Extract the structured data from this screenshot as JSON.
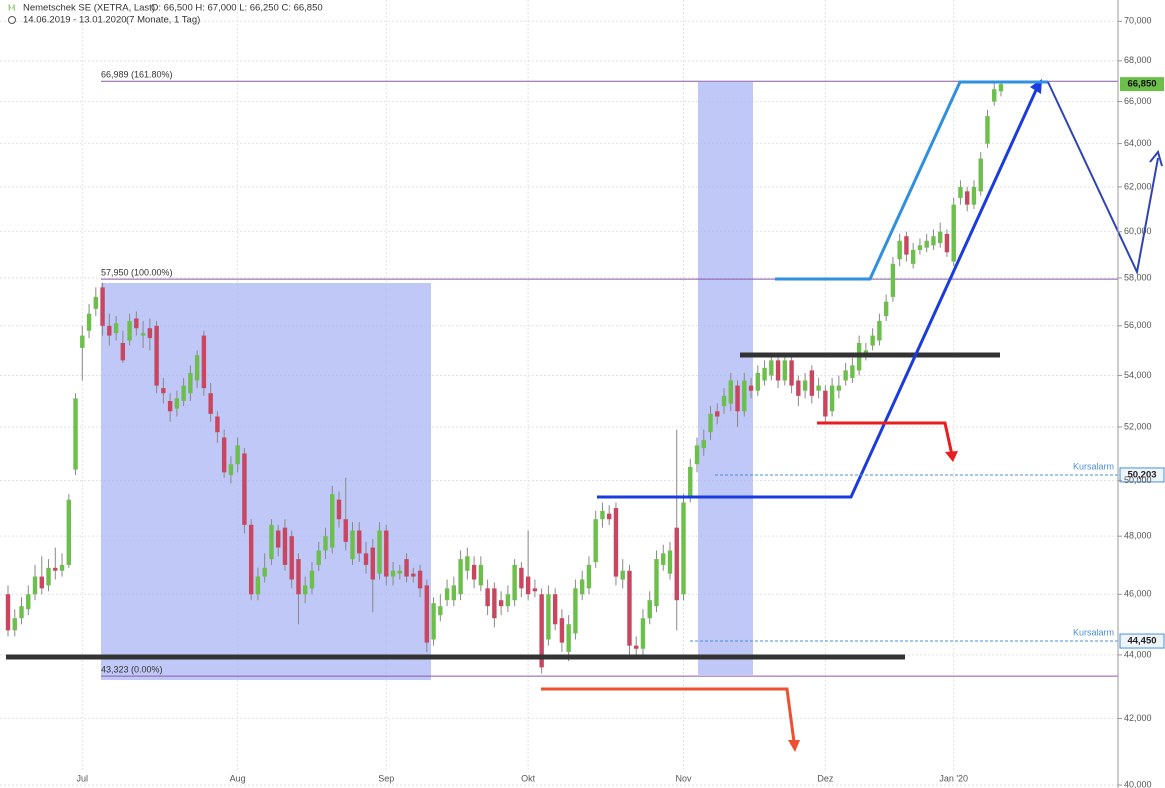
{
  "chart_data": {
    "type": "candlestick",
    "title": "Nemetschek SE (XETRA, Last)",
    "ohlc_text": "O: 66,500  H: 67,000  L: 66,250  C: 66,850",
    "subtitle": "14.06.2019 - 13.01.2020",
    "period": "(7 Monate, 1 Tag)",
    "categories": [
      null,
      null,
      null,
      null,
      null,
      null,
      null,
      null,
      null,
      null,
      null,
      "Jul",
      null,
      null,
      null,
      null,
      null,
      null,
      null,
      null,
      null,
      null,
      null,
      null,
      null,
      null,
      null,
      null,
      null,
      null,
      null,
      null,
      null,
      null,
      "Aug",
      null,
      null,
      null,
      null,
      null,
      null,
      null,
      null,
      null,
      null,
      null,
      null,
      null,
      null,
      null,
      null,
      null,
      null,
      null,
      null,
      null,
      "Sep",
      null,
      null,
      null,
      null,
      null,
      null,
      null,
      null,
      null,
      null,
      null,
      null,
      null,
      null,
      null,
      null,
      null,
      null,
      null,
      null,
      "Okt",
      null,
      null,
      null,
      null,
      null,
      null,
      null,
      null,
      null,
      null,
      null,
      null,
      null,
      null,
      null,
      null,
      null,
      null,
      null,
      null,
      null,
      null,
      "Nov",
      null,
      null,
      null,
      null,
      null,
      null,
      null,
      null,
      null,
      null,
      null,
      null,
      null,
      null,
      null,
      null,
      null,
      null,
      null,
      null,
      "Dez",
      null,
      null,
      null,
      null,
      null,
      null,
      null,
      null,
      null,
      null,
      null,
      null,
      null,
      null,
      null,
      null,
      null,
      null,
      "Jan '20",
      null,
      null,
      null,
      null,
      null,
      null,
      null
    ],
    "open": [
      46.0,
      44.8,
      45.2,
      45.5,
      46.0,
      46.6,
      46.3,
      46.9,
      46.8,
      47.0,
      50.4,
      55.1,
      55.8,
      56.7,
      57.6,
      56.0,
      55.7,
      55.3,
      55.4,
      56.3,
      55.6,
      55.9,
      56.0,
      53.5,
      53.0,
      52.7,
      53.0,
      53.3,
      53.8,
      55.6,
      53.3,
      52.4,
      51.6,
      50.2,
      50.6,
      51.0,
      48.4,
      46.0,
      46.6,
      47.2,
      48.2,
      48.3,
      48.0,
      47.2,
      46.0,
      46.2,
      47.0,
      47.5,
      47.6,
      49.3,
      48.6,
      47.2,
      48.2,
      47.4,
      47.6,
      46.7,
      48.2,
      46.6,
      46.7,
      47.2,
      46.7,
      46.8,
      46.3,
      44.5,
      45.3,
      45.8,
      45.8,
      46.0,
      46.8,
      47.0,
      46.3,
      46.2,
      46.2,
      45.8,
      45.6,
      45.8,
      46.9,
      46.6,
      46.2,
      46.0,
      44.5,
      46.0,
      45.2,
      44.1,
      44.7,
      46.0,
      46.2,
      47.1,
      48.6,
      48.8,
      49.0,
      46.5,
      46.8,
      44.3,
      44.2,
      45.2,
      45.6,
      47.0,
      46.7,
      48.3,
      46.0,
      49.4,
      50.6,
      51.2,
      51.8,
      52.6,
      52.8,
      52.9,
      53.6,
      52.6,
      53.6,
      53.4,
      53.8,
      54.0,
      54.6,
      53.8,
      54.6,
      53.8,
      53.4,
      54.2,
      53.4,
      53.4,
      52.6,
      53.4,
      53.8,
      53.9,
      54.2,
      54.8,
      55.2,
      55.4,
      56.4,
      57.2,
      58.8,
      59.8,
      58.6,
      59.2,
      59.3,
      59.4,
      59.5,
      59.9,
      58.7,
      61.5,
      61.8,
      61.2,
      61.8,
      64.0,
      66.0,
      66.5
    ],
    "high": [
      46.3,
      45.5,
      45.9,
      46.3,
      47.0,
      47.3,
      47.2,
      47.6,
      47.4,
      49.5,
      53.3,
      56.0,
      56.9,
      57.6,
      57.8,
      56.5,
      56.4,
      55.8,
      56.5,
      56.6,
      56.2,
      56.3,
      56.2,
      53.9,
      53.3,
      53.4,
      53.9,
      54.4,
      55.0,
      55.8,
      53.7,
      52.6,
      51.9,
      50.9,
      51.6,
      51.2,
      48.6,
      46.9,
      47.4,
      48.6,
      48.4,
      48.6,
      48.2,
      47.4,
      46.6,
      47.1,
      47.8,
      48.3,
      49.8,
      49.6,
      50.1,
      48.5,
      48.5,
      47.8,
      47.9,
      48.5,
      48.4,
      47.1,
      47.0,
      47.4,
      46.9,
      47.0,
      46.5,
      45.9,
      46.0,
      46.5,
      46.6,
      47.5,
      47.6,
      47.3,
      47.3,
      46.5,
      46.4,
      46.1,
      46.3,
      47.2,
      47.1,
      48.2,
      46.5,
      46.2,
      46.3,
      46.2,
      45.5,
      45.3,
      46.5,
      46.8,
      47.3,
      48.9,
      49.2,
      49.1,
      49.2,
      47.2,
      47.0,
      44.6,
      45.5,
      46.1,
      47.5,
      47.7,
      47.8,
      51.9,
      49.5,
      50.8,
      51.6,
      51.9,
      52.8,
      52.9,
      53.5,
      54.1,
      53.8,
      54.1,
      53.9,
      54.4,
      54.6,
      54.9,
      54.8,
      54.9,
      54.8,
      54.0,
      54.1,
      54.4,
      53.9,
      53.6,
      53.9,
      54.0,
      54.5,
      54.7,
      55.6,
      55.3,
      55.9,
      56.5,
      57.3,
      58.9,
      59.9,
      60.0,
      59.5,
      59.7,
      59.9,
      60.1,
      60.4,
      60.1,
      61.5,
      62.3,
      62.0,
      62.3,
      63.6,
      65.6,
      66.9,
      67.0
    ],
    "low": [
      44.6,
      44.6,
      45.0,
      45.3,
      45.8,
      46.0,
      46.1,
      46.5,
      46.6,
      46.9,
      50.2,
      53.8,
      55.5,
      56.4,
      55.6,
      55.2,
      55.4,
      54.5,
      55.2,
      55.6,
      55.1,
      55.0,
      53.3,
      52.9,
      52.2,
      52.4,
      52.8,
      53.0,
      53.5,
      53.2,
      52.2,
      51.4,
      50.1,
      49.9,
      50.3,
      48.1,
      45.8,
      45.8,
      46.4,
      47.0,
      47.3,
      46.8,
      46.2,
      45.0,
      45.7,
      46.0,
      46.8,
      47.2,
      47.4,
      48.3,
      47.5,
      47.0,
      47.1,
      46.7,
      45.4,
      46.5,
      46.3,
      46.3,
      46.5,
      46.4,
      46.4,
      45.9,
      44.1,
      44.3,
      45.1,
      45.6,
      45.6,
      45.8,
      46.5,
      46.2,
      46.1,
      45.3,
      44.9,
      45.3,
      45.4,
      45.6,
      45.9,
      45.8,
      45.9,
      43.4,
      44.3,
      44.8,
      44.1,
      43.8,
      44.5,
      45.8,
      46.0,
      46.9,
      48.3,
      48.4,
      46.3,
      46.2,
      44.0,
      43.9,
      44.0,
      45.0,
      45.4,
      46.8,
      46.5,
      44.8,
      45.8,
      49.2,
      50.3,
      50.9,
      51.5,
      52.1,
      52.5,
      52.6,
      52.0,
      52.4,
      53.1,
      53.2,
      53.6,
      53.8,
      53.5,
      53.6,
      53.3,
      52.8,
      53.1,
      52.9,
      53.1,
      52.2,
      52.4,
      53.1,
      53.6,
      53.7,
      54.0,
      54.6,
      55.0,
      55.2,
      56.2,
      57.0,
      58.5,
      58.7,
      58.4,
      59.0,
      59.1,
      59.2,
      59.3,
      58.9,
      58.5,
      61.2,
      60.9,
      61.0,
      61.6,
      63.8,
      65.8,
      66.25
    ],
    "close": [
      44.8,
      45.2,
      45.6,
      46.0,
      46.6,
      46.2,
      46.9,
      46.8,
      47.0,
      49.3,
      53.1,
      55.6,
      56.5,
      57.2,
      56.0,
      55.6,
      56.1,
      54.6,
      56.2,
      55.9,
      55.7,
      55.5,
      53.6,
      53.3,
      52.6,
      53.1,
      53.6,
      54.1,
      54.8,
      53.5,
      52.5,
      51.8,
      50.3,
      50.6,
      51.3,
      48.4,
      46.0,
      46.6,
      46.9,
      48.4,
      47.6,
      47.0,
      46.5,
      46.0,
      46.3,
      46.8,
      47.5,
      48.0,
      49.5,
      48.6,
      47.8,
      48.2,
      47.4,
      47.0,
      46.5,
      48.2,
      46.6,
      46.8,
      46.8,
      46.6,
      46.6,
      46.2,
      44.4,
      45.7,
      45.6,
      46.2,
      46.3,
      47.2,
      47.3,
      46.5,
      47.0,
      45.6,
      45.2,
      45.6,
      46.0,
      47.0,
      46.2,
      46.0,
      46.1,
      43.6,
      46.0,
      45.0,
      44.4,
      45.0,
      46.2,
      46.5,
      47.0,
      48.6,
      48.9,
      48.6,
      46.6,
      46.8,
      44.3,
      44.2,
      45.2,
      45.8,
      47.2,
      47.4,
      47.5,
      45.8,
      49.2,
      50.5,
      51.3,
      51.5,
      52.5,
      52.4,
      53.2,
      53.8,
      52.6,
      53.8,
      53.4,
      54.1,
      54.3,
      54.6,
      53.8,
      54.6,
      53.6,
      53.2,
      53.8,
      53.2,
      53.6,
      52.4,
      53.6,
      53.6,
      54.2,
      54.4,
      55.3,
      55.0,
      55.6,
      56.2,
      57.0,
      58.6,
      59.6,
      59.0,
      59.2,
      59.4,
      59.6,
      59.8,
      60.0,
      59.1,
      61.2,
      62.0,
      61.2,
      62.0,
      63.3,
      65.3,
      66.6,
      66.85
    ],
    "up_color": "#6cbf4a",
    "down_color": "#c8465f",
    "log_scale": true,
    "grid": true,
    "ylim": [
      40,
      71.1
    ],
    "yticks": [
      {
        "value": 40,
        "label": "40,000"
      },
      {
        "value": 42,
        "label": "42,000"
      },
      {
        "value": 44,
        "label": "44,000"
      },
      {
        "value": 46,
        "label": "46,000"
      },
      {
        "value": 48,
        "label": "48,000"
      },
      {
        "value": 50,
        "label": "50,000"
      },
      {
        "value": 52,
        "label": "52,000"
      },
      {
        "value": 54,
        "label": "54,000"
      },
      {
        "value": 56,
        "label": "56,000"
      },
      {
        "value": 58,
        "label": "58,000"
      },
      {
        "value": 60,
        "label": "60,000"
      },
      {
        "value": 62,
        "label": "62,000"
      },
      {
        "value": 64,
        "label": "64,000"
      },
      {
        "value": 66,
        "label": "66,000"
      },
      {
        "value": 68,
        "label": "68,000"
      },
      {
        "value": 70,
        "label": "70,000"
      }
    ],
    "fib_levels": [
      {
        "value": 66.989,
        "label": "66,989 (161.80%)"
      },
      {
        "value": 57.95,
        "label": "57,950 (100.00%)"
      },
      {
        "value": 43.323,
        "label": "43,323 (0.00%)"
      }
    ],
    "alerts": [
      {
        "name": "Kursalarm",
        "value": 50.203,
        "label": "50,203"
      },
      {
        "name": "Kursalarm",
        "value": 44.45,
        "label": "44,450"
      }
    ],
    "price_tag": {
      "value": 66.85,
      "label": "66,850"
    }
  }
}
